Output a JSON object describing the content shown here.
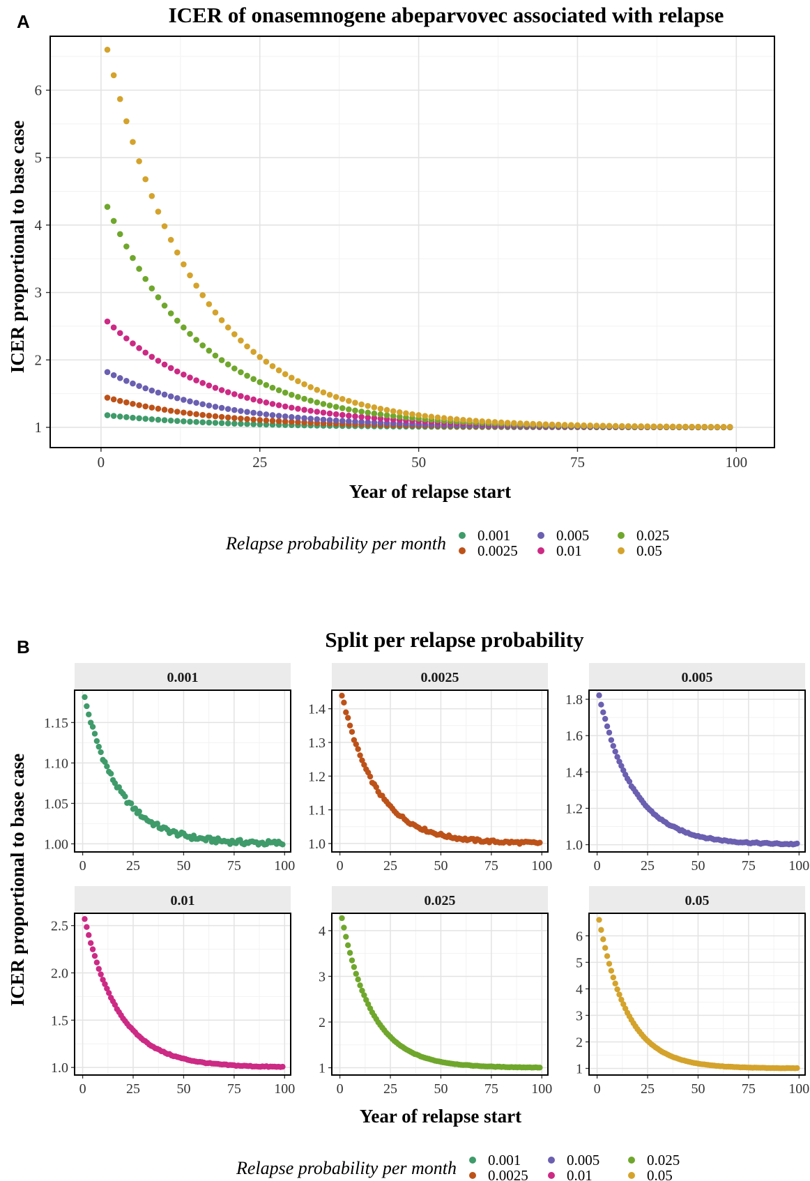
{
  "panels": {
    "a": {
      "letter": "A"
    },
    "b": {
      "letter": "B"
    }
  },
  "legend_title": "Relapse probability per month",
  "series_colors": {
    "0.001": "#3f9b6a",
    "0.0025": "#bd5219",
    "0.005": "#6a5fb0",
    "0.01": "#cc2a84",
    "0.025": "#6fa72c",
    "0.05": "#d4a32c"
  },
  "chart_data": [
    {
      "type": "scatter",
      "title": "ICER of onasemnogene abeparvovec associated with relapse",
      "xlabel": "Year of relapse start",
      "ylabel": "ICER proportional to base case",
      "xlim": [
        -8,
        106
      ],
      "ylim": [
        0.7,
        6.8
      ],
      "xticks": [
        "0",
        "25",
        "50",
        "75",
        "100"
      ],
      "yticks": [
        "1",
        "2",
        "3",
        "4",
        "5",
        "6"
      ],
      "grid": true,
      "legend_position": "bottom",
      "x": {
        "start": 1,
        "end": 99,
        "step": 1
      },
      "model": "y = 1 + c * exp(-k * (x - 1))",
      "series": [
        {
          "name": "0.001",
          "y_at_x1": 1.18,
          "decay_per_year": 0.058
        },
        {
          "name": "0.0025",
          "y_at_x1": 1.44,
          "decay_per_year": 0.058
        },
        {
          "name": "0.005",
          "y_at_x1": 1.82,
          "decay_per_year": 0.058
        },
        {
          "name": "0.01",
          "y_at_x1": 2.57,
          "decay_per_year": 0.058
        },
        {
          "name": "0.025",
          "y_at_x1": 4.27,
          "decay_per_year": 0.066
        },
        {
          "name": "0.05",
          "y_at_x1": 6.6,
          "decay_per_year": 0.07
        }
      ]
    },
    {
      "type": "scatter",
      "title": "Split per relapse probability",
      "xlabel": "Year of relapse start",
      "ylabel": "ICER proportional to base case",
      "legend_position": "bottom",
      "grid": true,
      "facets": [
        {
          "strip": "0.001",
          "xlim": [
            -4,
            103
          ],
          "ylim": [
            0.99,
            1.19
          ],
          "xticks": [
            "0",
            "25",
            "50",
            "75",
            "100"
          ],
          "yticks": [
            "1.00",
            "1.05",
            "1.10",
            "1.15"
          ],
          "y_at_x1": 1.18,
          "decay_per_year": 0.058,
          "noise": 0.003
        },
        {
          "strip": "0.0025",
          "xlim": [
            -4,
            103
          ],
          "ylim": [
            0.975,
            1.455
          ],
          "xticks": [
            "0",
            "25",
            "50",
            "75",
            "100"
          ],
          "yticks": [
            "1.0",
            "1.1",
            "1.2",
            "1.3",
            "1.4"
          ],
          "y_at_x1": 1.44,
          "decay_per_year": 0.058,
          "noise": 0.004
        },
        {
          "strip": "0.005",
          "xlim": [
            -4,
            103
          ],
          "ylim": [
            0.96,
            1.85
          ],
          "xticks": [
            "0",
            "25",
            "50",
            "75",
            "100"
          ],
          "yticks": [
            "1.0",
            "1.2",
            "1.4",
            "1.6",
            "1.8"
          ],
          "y_at_x1": 1.82,
          "decay_per_year": 0.058,
          "noise": 0.004
        },
        {
          "strip": "0.01",
          "xlim": [
            -4,
            103
          ],
          "ylim": [
            0.92,
            2.63
          ],
          "xticks": [
            "0",
            "25",
            "50",
            "75",
            "100"
          ],
          "yticks": [
            "1.0",
            "1.5",
            "2.0",
            "2.5"
          ],
          "y_at_x1": 2.57,
          "decay_per_year": 0.058,
          "noise": 0.005
        },
        {
          "strip": "0.025",
          "xlim": [
            -4,
            103
          ],
          "ylim": [
            0.84,
            4.38
          ],
          "xticks": [
            "0",
            "25",
            "50",
            "75",
            "100"
          ],
          "yticks": [
            "1",
            "2",
            "3",
            "4"
          ],
          "y_at_x1": 4.27,
          "decay_per_year": 0.066,
          "noise": 0.005
        },
        {
          "strip": "0.05",
          "xlim": [
            -4,
            103
          ],
          "ylim": [
            0.75,
            6.85
          ],
          "xticks": [
            "0",
            "25",
            "50",
            "75",
            "100"
          ],
          "yticks": [
            "1",
            "2",
            "3",
            "4",
            "5",
            "6"
          ],
          "y_at_x1": 6.6,
          "decay_per_year": 0.07,
          "noise": 0.005
        }
      ]
    }
  ]
}
